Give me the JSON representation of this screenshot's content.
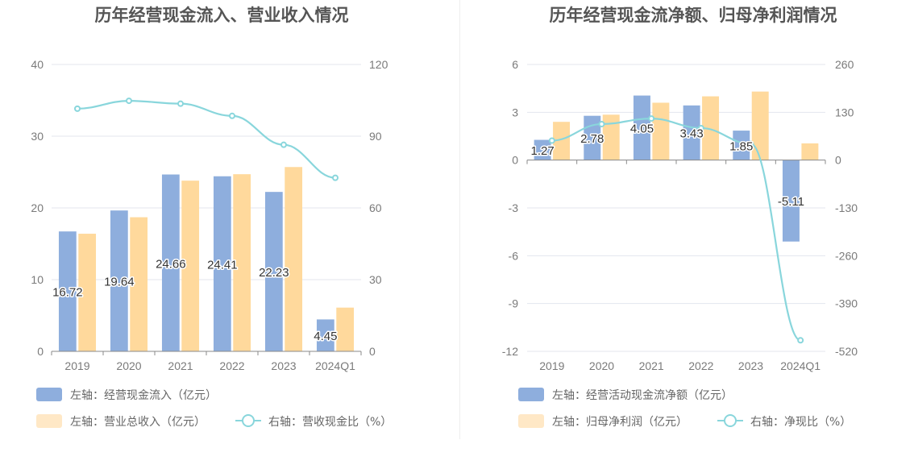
{
  "colors": {
    "bar_a": "#8eaedd",
    "bar_b": "#ffd99c",
    "line": "#89d6dc",
    "grid": "#e3e6ee",
    "axis": "#8a8a8a",
    "legend_b_swatch": "#ffe8c6"
  },
  "chart_data": [
    {
      "type": "bar",
      "title": "历年经营现金流入、营业收入情况",
      "categories": [
        "2019",
        "2020",
        "2021",
        "2022",
        "2023",
        "2024Q1"
      ],
      "y_left": {
        "ticks": [
          "0",
          "10",
          "20",
          "30",
          "40"
        ],
        "lim": [
          0,
          40
        ]
      },
      "y_right": {
        "ticks": [
          "0",
          "30",
          "60",
          "90",
          "120"
        ],
        "lim": [
          0,
          120
        ]
      },
      "series": [
        {
          "name": "左轴：经营现金流入（亿元）",
          "axis": "left",
          "kind": "bar",
          "values": [
            16.72,
            19.64,
            24.66,
            24.41,
            22.23,
            4.45
          ],
          "labels": [
            "16.72",
            "19.64",
            "24.66",
            "24.41",
            "22.23",
            "4.45"
          ]
        },
        {
          "name": "左轴：营业总收入（亿元）",
          "axis": "left",
          "kind": "bar",
          "values": [
            16.4,
            18.7,
            23.8,
            24.7,
            25.7,
            6.1
          ]
        },
        {
          "name": "右轴：营收现金比（%）",
          "axis": "right",
          "kind": "line",
          "values": [
            101.5,
            104.8,
            103.6,
            98.5,
            86.4,
            72.6
          ]
        }
      ]
    },
    {
      "type": "bar",
      "title": "历年经营现金流净额、归母净利润情况",
      "categories": [
        "2019",
        "2020",
        "2021",
        "2022",
        "2023",
        "2024Q1"
      ],
      "y_left": {
        "ticks": [
          "-12",
          "-9",
          "-6",
          "-3",
          "0",
          "3",
          "6"
        ],
        "lim": [
          -12,
          6
        ]
      },
      "y_right": {
        "ticks": [
          "-520",
          "-390",
          "-260",
          "-130",
          "0",
          "130",
          "260"
        ],
        "lim": [
          -520,
          260
        ]
      },
      "series": [
        {
          "name": "左轴：经营活动现金流净额（亿元）",
          "axis": "left",
          "kind": "bar",
          "values": [
            1.27,
            2.78,
            4.05,
            3.43,
            1.85,
            -5.11
          ],
          "labels": [
            "1.27",
            "2.78",
            "4.05",
            "3.43",
            "1.85",
            "-5.11"
          ]
        },
        {
          "name": "左轴：归母净利润（亿元）",
          "axis": "left",
          "kind": "bar",
          "values": [
            2.4,
            2.85,
            3.6,
            4.0,
            4.3,
            1.05
          ]
        },
        {
          "name": "右轴：净现比（%）",
          "axis": "right",
          "kind": "line",
          "values": [
            53,
            98,
            113,
            87,
            44,
            -490
          ]
        }
      ]
    }
  ]
}
